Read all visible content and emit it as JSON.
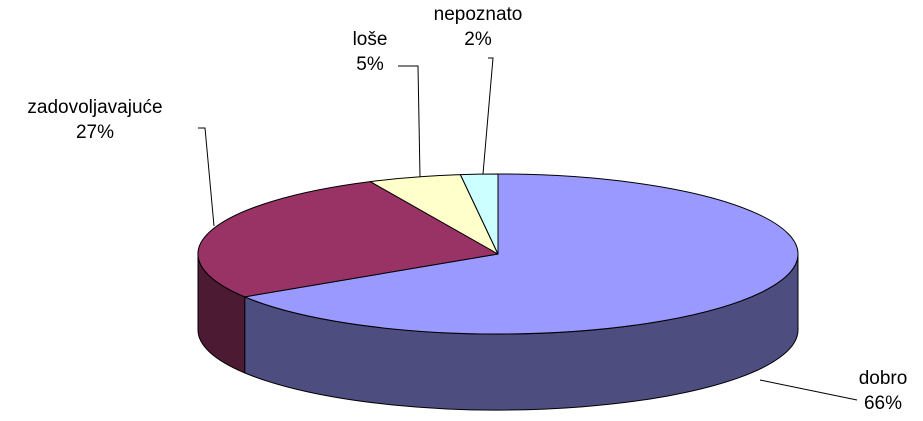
{
  "chart_data": {
    "type": "pie",
    "three_d": true,
    "categories": [
      "dobro",
      "zadovoljavajuće",
      "loše",
      "nepoznato"
    ],
    "values": [
      66,
      27,
      5,
      2
    ],
    "value_labels": [
      "66%",
      "27%",
      "5%",
      "2%"
    ],
    "colors": [
      "#9999ff",
      "#993366",
      "#ffffcc",
      "#ccffff"
    ]
  }
}
